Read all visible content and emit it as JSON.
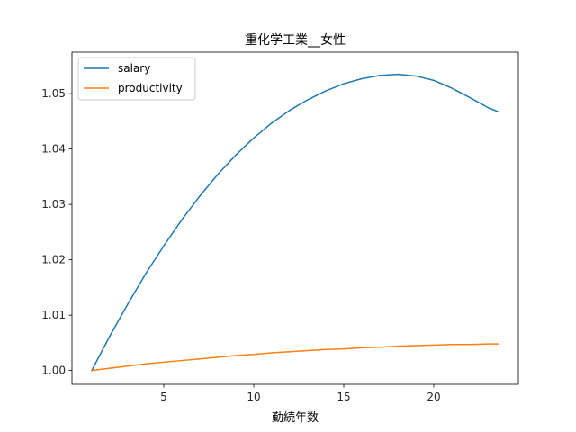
{
  "chart_data": {
    "type": "line",
    "title": "重化学工業__女性",
    "xlabel": "勤続年数",
    "ylabel": "",
    "xlim": [
      -0.1,
      24.7
    ],
    "ylim": [
      0.9975,
      1.0575
    ],
    "xticks": [
      5,
      10,
      15,
      20
    ],
    "xtick_labels": [
      "5",
      "10",
      "15",
      "20"
    ],
    "yticks": [
      1.0,
      1.01,
      1.02,
      1.03,
      1.04,
      1.05
    ],
    "ytick_labels": [
      "1.00",
      "1.01",
      "1.02",
      "1.03",
      "1.04",
      "1.05"
    ],
    "grid": false,
    "legend_position": "top-left",
    "series": [
      {
        "name": "salary",
        "color": "#1f77b4",
        "x": [
          1,
          2,
          3,
          4,
          5,
          6,
          7,
          8,
          9,
          10,
          11,
          12,
          13,
          14,
          15,
          16,
          17,
          18,
          19,
          20,
          21,
          22,
          23,
          23.6
        ],
        "y": [
          1.0,
          1.0062,
          1.012,
          1.0175,
          1.0225,
          1.0272,
          1.0315,
          1.0354,
          1.0389,
          1.042,
          1.0447,
          1.047,
          1.0489,
          1.0505,
          1.0518,
          1.0527,
          1.0533,
          1.0535,
          1.0532,
          1.0524,
          1.051,
          1.0493,
          1.0475,
          1.0467
        ]
      },
      {
        "name": "productivity",
        "color": "#ff7f0e",
        "x": [
          1,
          2,
          3,
          4,
          5,
          6,
          7,
          8,
          9,
          10,
          11,
          12,
          13,
          14,
          15,
          16,
          17,
          18,
          19,
          20,
          21,
          22,
          23,
          23.6
        ],
        "y": [
          1.0,
          1.0004,
          1.0008,
          1.0012,
          1.0015,
          1.0018,
          1.0021,
          1.0024,
          1.0027,
          1.0029,
          1.0032,
          1.0034,
          1.0036,
          1.0038,
          1.0039,
          1.0041,
          1.0042,
          1.0044,
          1.0045,
          1.0046,
          1.0047,
          1.0047,
          1.0048,
          1.0048
        ]
      }
    ]
  }
}
